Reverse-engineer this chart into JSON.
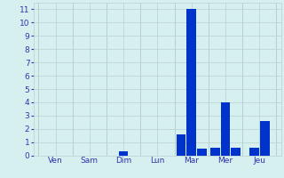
{
  "days": [
    "Ven",
    "Sam",
    "Dim",
    "Lun",
    "Mar",
    "Mer",
    "Jeu"
  ],
  "bars": [
    {
      "day": "Ven",
      "values": [
        0
      ]
    },
    {
      "day": "Sam",
      "values": [
        0
      ]
    },
    {
      "day": "Dim",
      "values": [
        0.3
      ]
    },
    {
      "day": "Lun",
      "values": [
        0
      ]
    },
    {
      "day": "Mar",
      "values": [
        1.6,
        11.0,
        0.5
      ]
    },
    {
      "day": "Mer",
      "values": [
        0.6,
        4.0,
        0.6
      ]
    },
    {
      "day": "Jeu",
      "values": [
        0.6,
        2.6
      ]
    }
  ],
  "bar_color": "#0033cc",
  "bar_width": 0.28,
  "background_color": "#d6f0f0",
  "grid_color": "#b8d0d0",
  "tick_color": "#3333aa",
  "ylim": [
    0,
    11.5
  ],
  "yticks": [
    0,
    1,
    2,
    3,
    4,
    5,
    6,
    7,
    8,
    9,
    10,
    11
  ],
  "figsize": [
    3.2,
    2.0
  ],
  "dpi": 100
}
